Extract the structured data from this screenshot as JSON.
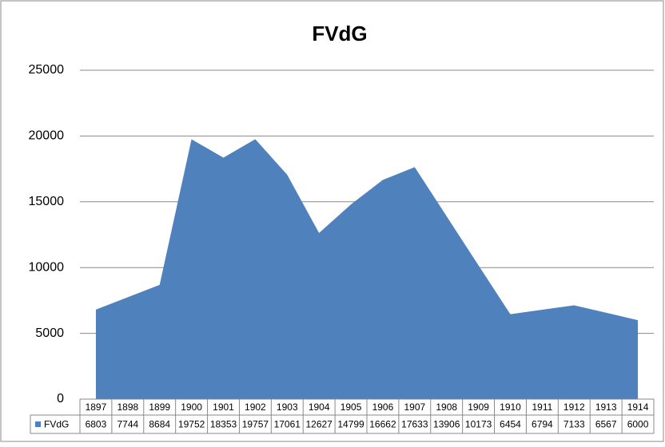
{
  "chart_data": {
    "type": "area",
    "title": "FVdG",
    "categories": [
      "1897",
      "1898",
      "1899",
      "1900",
      "1901",
      "1902",
      "1903",
      "1904",
      "1905",
      "1906",
      "1907",
      "1908",
      "1909",
      "1910",
      "1911",
      "1912",
      "1913",
      "1914"
    ],
    "series": [
      {
        "name": "FVdG",
        "color": "#4f81bd",
        "values": [
          6803,
          7744,
          8684,
          19752,
          18353,
          19757,
          17061,
          12627,
          14799,
          16662,
          17633,
          13906,
          10173,
          6454,
          6794,
          7133,
          6567,
          6000
        ]
      }
    ],
    "ylim": [
      0,
      25000
    ],
    "yticks": [
      0,
      5000,
      10000,
      15000,
      20000,
      25000
    ],
    "grid": true,
    "data_table": true
  }
}
